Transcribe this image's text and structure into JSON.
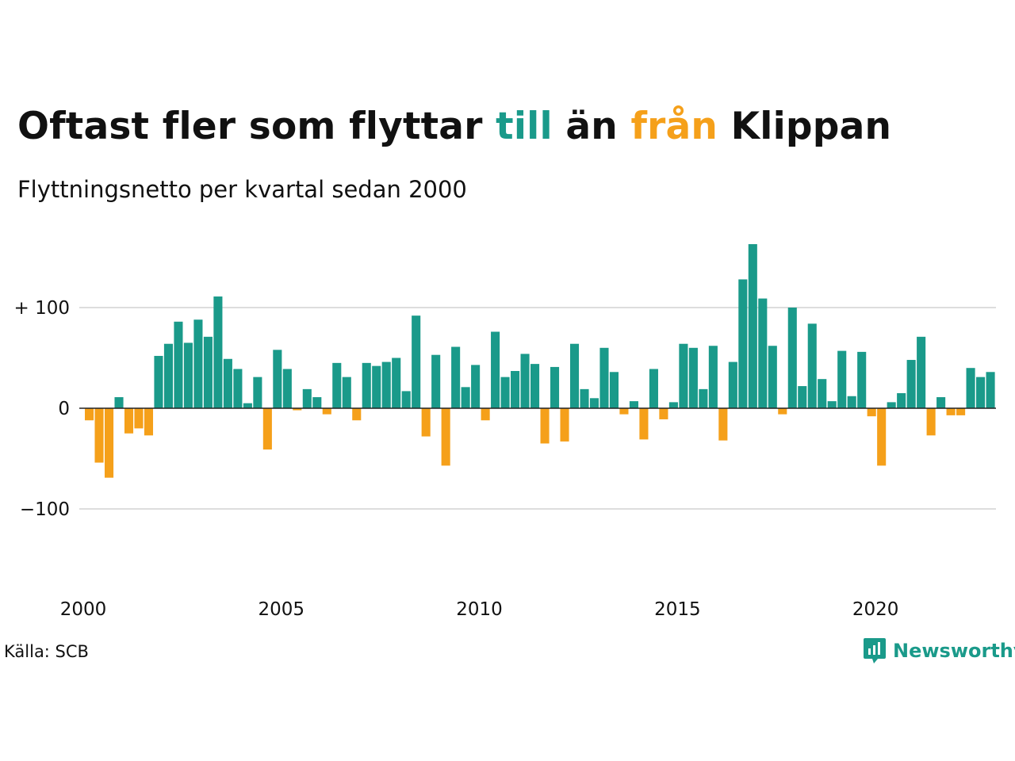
{
  "title": {
    "part1": "Oftast fler som flyttar ",
    "part2": "till",
    "part3": " än ",
    "part4": "från",
    "part5": " Klippan"
  },
  "subtitle": "Flyttningsnetto per kvartal sedan 2000",
  "source": "Källa: SCB",
  "logo": {
    "text": "Newsworthy",
    "icon": "newsworthy-logo-icon"
  },
  "colors": {
    "positive": "#1a9a8a",
    "negative": "#f5a01a",
    "grid": "#dddddd"
  },
  "chart_data": {
    "type": "bar",
    "x_start": "2000 Q1",
    "quarters_per_year": 4,
    "xticks": [
      "2000",
      "2005",
      "2010",
      "2015",
      "2020"
    ],
    "yticks": [
      100,
      0,
      -100
    ],
    "ytick_labels": [
      "+ 100",
      "0",
      "−100"
    ],
    "ylim": [
      -185,
      170
    ],
    "grid": true,
    "values": [
      -12,
      -54,
      -69,
      11,
      -25,
      -20,
      -27,
      52,
      64,
      86,
      65,
      88,
      71,
      111,
      49,
      39,
      5,
      31,
      -41,
      58,
      39,
      -2,
      19,
      11,
      -6,
      45,
      31,
      -12,
      45,
      42,
      46,
      50,
      17,
      92,
      -28,
      53,
      -57,
      61,
      21,
      43,
      -12,
      76,
      31,
      37,
      54,
      44,
      -35,
      41,
      -33,
      64,
      19,
      10,
      60,
      36,
      -6,
      7,
      -31,
      39,
      -11,
      6,
      64,
      60,
      19,
      62,
      -32,
      46,
      128,
      163,
      109,
      62,
      -6,
      100,
      22,
      84,
      29,
      7,
      57,
      12,
      56,
      -8,
      -57,
      6,
      15,
      48,
      71,
      -27,
      11,
      -7,
      -7,
      40,
      31,
      36
    ]
  }
}
